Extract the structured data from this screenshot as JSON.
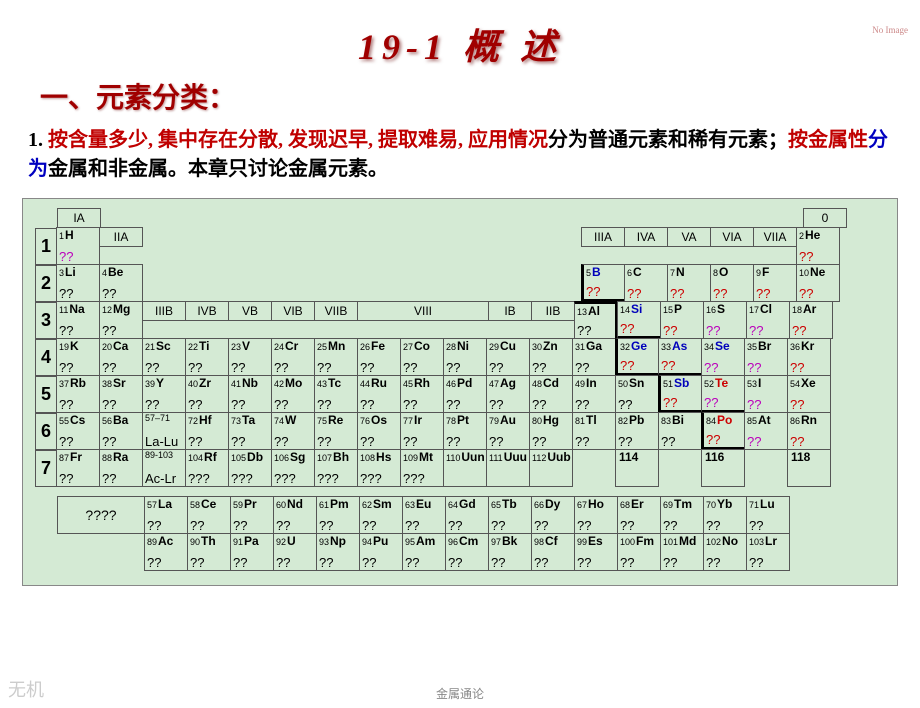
{
  "noimg": "No\nImage",
  "title": "19-1  概  述",
  "subtitle": "一、元素分类：",
  "para": {
    "p1": "1. ",
    "red1": "按含量多少, 集中存在分散, 发现迟早, 提取难易, 应用情况",
    "p2": "分为普通元素和稀有元素；",
    "red2": "按金属性",
    "blue1": "分为",
    "p3": "金属和非金属。本章只讨论金属元素。"
  },
  "headers": {
    "IA": "IA",
    "IIA": "IIA",
    "IIIB": "IIIB",
    "IVB": "IVB",
    "VB": "VB",
    "VIB": "VIB",
    "VIIB": "VIIB",
    "VIII": "VIII",
    "IB": "IB",
    "IIB": "IIB",
    "IIIA": "IIIA",
    "IVA": "IVA",
    "VA": "VA",
    "VIA": "VIA",
    "VIIA": "VIIA",
    "g0": "0"
  },
  "periods": [
    "1",
    "2",
    "3",
    "4",
    "5",
    "6",
    "7"
  ],
  "e": {
    "H": {
      "z": "1",
      "s": "H",
      "q": "??",
      "qc": "qmag"
    },
    "He": {
      "z": "2",
      "s": "He",
      "q": "??",
      "qc": "qred"
    },
    "Li": {
      "z": "3",
      "s": "Li",
      "q": "??"
    },
    "Be": {
      "z": "4",
      "s": "Be",
      "q": "??"
    },
    "B": {
      "z": "5",
      "s": "B",
      "q": "??",
      "sc": "sblue",
      "qc": "qred"
    },
    "C": {
      "z": "6",
      "s": "C",
      "q": "??",
      "qc": "qred"
    },
    "N": {
      "z": "7",
      "s": "N",
      "q": "??",
      "qc": "qred"
    },
    "O": {
      "z": "8",
      "s": "O",
      "q": "??",
      "qc": "qred"
    },
    "F": {
      "z": "9",
      "s": "F",
      "q": "??",
      "qc": "qred"
    },
    "Ne": {
      "z": "10",
      "s": "Ne",
      "q": "??",
      "qc": "qred"
    },
    "Na": {
      "z": "11",
      "s": "Na",
      "q": "??"
    },
    "Mg": {
      "z": "12",
      "s": "Mg",
      "q": "??"
    },
    "Al": {
      "z": "13",
      "s": "Al",
      "q": "??"
    },
    "Si": {
      "z": "14",
      "s": "Si",
      "q": "??",
      "sc": "sblue",
      "qc": "qred"
    },
    "P": {
      "z": "15",
      "s": "P",
      "q": "??",
      "qc": "qred"
    },
    "S": {
      "z": "16",
      "s": "S",
      "q": "??",
      "qc": "qmag"
    },
    "Cl": {
      "z": "17",
      "s": "Cl",
      "q": "??",
      "qc": "qmag"
    },
    "Ar": {
      "z": "18",
      "s": "Ar",
      "q": "??",
      "qc": "qred"
    },
    "K": {
      "z": "19",
      "s": "K",
      "q": "??"
    },
    "Ca": {
      "z": "20",
      "s": "Ca",
      "q": "??"
    },
    "Sc": {
      "z": "21",
      "s": "Sc",
      "q": "??"
    },
    "Ti": {
      "z": "22",
      "s": "Ti",
      "q": "??"
    },
    "V": {
      "z": "23",
      "s": "V",
      "q": "??"
    },
    "Cr": {
      "z": "24",
      "s": "Cr",
      "q": "??"
    },
    "Mn": {
      "z": "25",
      "s": "Mn",
      "q": "??"
    },
    "Fe": {
      "z": "26",
      "s": "Fe",
      "q": "??"
    },
    "Co": {
      "z": "27",
      "s": "Co",
      "q": "??"
    },
    "Ni": {
      "z": "28",
      "s": "Ni",
      "q": "??"
    },
    "Cu": {
      "z": "29",
      "s": "Cu",
      "q": "??"
    },
    "Zn": {
      "z": "30",
      "s": "Zn",
      "q": "??"
    },
    "Ga": {
      "z": "31",
      "s": "Ga",
      "q": "??"
    },
    "Ge": {
      "z": "32",
      "s": "Ge",
      "q": "??",
      "sc": "sblue",
      "qc": "qred"
    },
    "As": {
      "z": "33",
      "s": "As",
      "q": "??",
      "sc": "sblue",
      "qc": "qred"
    },
    "Se": {
      "z": "34",
      "s": "Se",
      "q": "??",
      "sc": "sblue",
      "qc": "qmag"
    },
    "Br": {
      "z": "35",
      "s": "Br",
      "q": "??",
      "qc": "qmag"
    },
    "Kr": {
      "z": "36",
      "s": "Kr",
      "q": "??",
      "qc": "qred"
    },
    "Rb": {
      "z": "37",
      "s": "Rb",
      "q": "??"
    },
    "Sr": {
      "z": "38",
      "s": "Sr",
      "q": "??"
    },
    "Y": {
      "z": "39",
      "s": "Y",
      "q": "??"
    },
    "Zr": {
      "z": "40",
      "s": "Zr",
      "q": "??"
    },
    "Nb": {
      "z": "41",
      "s": "Nb",
      "q": "??"
    },
    "Mo": {
      "z": "42",
      "s": "Mo",
      "q": "??"
    },
    "Tc": {
      "z": "43",
      "s": "Tc",
      "q": "??"
    },
    "Ru": {
      "z": "44",
      "s": "Ru",
      "q": "??"
    },
    "Rh": {
      "z": "45",
      "s": "Rh",
      "q": "??"
    },
    "Pd": {
      "z": "46",
      "s": "Pd",
      "q": "??"
    },
    "Ag": {
      "z": "47",
      "s": "Ag",
      "q": "??"
    },
    "Cd": {
      "z": "48",
      "s": "Cd",
      "q": "??"
    },
    "In": {
      "z": "49",
      "s": "In",
      "q": "??"
    },
    "Sn": {
      "z": "50",
      "s": "Sn",
      "q": "??"
    },
    "Sb": {
      "z": "51",
      "s": "Sb",
      "q": "??",
      "sc": "sblue",
      "qc": "qred"
    },
    "Te": {
      "z": "52",
      "s": "Te",
      "q": "??",
      "sc": "sred",
      "qc": "qmag"
    },
    "I": {
      "z": "53",
      "s": "I",
      "q": "??",
      "qc": "qmag"
    },
    "Xe": {
      "z": "54",
      "s": "Xe",
      "q": "??",
      "qc": "qred"
    },
    "Cs": {
      "z": "55",
      "s": "Cs",
      "q": "??"
    },
    "Ba": {
      "z": "56",
      "s": "Ba",
      "q": "??"
    },
    "LaLu": {
      "z": "57–71",
      "s": "",
      "q": "La-Lu"
    },
    "Hf": {
      "z": "72",
      "s": "Hf",
      "q": "??"
    },
    "Ta": {
      "z": "73",
      "s": "Ta",
      "q": "??"
    },
    "W": {
      "z": "74",
      "s": "W",
      "q": "??"
    },
    "Re": {
      "z": "75",
      "s": "Re",
      "q": "??"
    },
    "Os": {
      "z": "76",
      "s": "Os",
      "q": "??"
    },
    "Ir": {
      "z": "77",
      "s": "Ir",
      "q": "??"
    },
    "Pt": {
      "z": "78",
      "s": "Pt",
      "q": "??"
    },
    "Au": {
      "z": "79",
      "s": "Au",
      "q": "??"
    },
    "Hg": {
      "z": "80",
      "s": "Hg",
      "q": "??"
    },
    "Tl": {
      "z": "81",
      "s": "Tl",
      "q": "??"
    },
    "Pb": {
      "z": "82",
      "s": "Pb",
      "q": "??"
    },
    "Bi": {
      "z": "83",
      "s": "Bi",
      "q": "??"
    },
    "Po": {
      "z": "84",
      "s": "Po",
      "q": "??",
      "sc": "sred",
      "qc": "qred"
    },
    "At": {
      "z": "85",
      "s": "At",
      "q": "??",
      "qc": "qmag"
    },
    "Rn": {
      "z": "86",
      "s": "Rn",
      "q": "??",
      "qc": "qred"
    },
    "Fr": {
      "z": "87",
      "s": "Fr",
      "q": "??"
    },
    "Ra": {
      "z": "88",
      "s": "Ra",
      "q": "??"
    },
    "AcLr": {
      "z": "89-103",
      "s": "",
      "q": "Ac-Lr"
    },
    "Rf": {
      "z": "104",
      "s": "Rf",
      "q": "???"
    },
    "Db": {
      "z": "105",
      "s": "Db",
      "q": "???"
    },
    "Sg": {
      "z": "106",
      "s": "Sg",
      "q": "???"
    },
    "Bh": {
      "z": "107",
      "s": "Bh",
      "q": "???"
    },
    "Hs": {
      "z": "108",
      "s": "Hs",
      "q": "???"
    },
    "Mt": {
      "z": "109",
      "s": "Mt",
      "q": "???"
    },
    "Uun": {
      "z": "110",
      "s": "Uun",
      "q": ""
    },
    "Uuu": {
      "z": "111",
      "s": "Uuu",
      "q": ""
    },
    "Uub": {
      "z": "112",
      "s": "Uub",
      "q": ""
    },
    "e114": {
      "z": "",
      "s": "114",
      "q": ""
    },
    "e116": {
      "z": "",
      "s": "116",
      "q": ""
    },
    "e118": {
      "z": "",
      "s": "118",
      "q": ""
    }
  },
  "lan": {
    "lbl": "????",
    "r1": [
      {
        "z": "57",
        "s": "La",
        "q": "??"
      },
      {
        "z": "58",
        "s": "Ce",
        "q": "??"
      },
      {
        "z": "59",
        "s": "Pr",
        "q": "??"
      },
      {
        "z": "60",
        "s": "Nd",
        "q": "??"
      },
      {
        "z": "61",
        "s": "Pm",
        "q": "??"
      },
      {
        "z": "62",
        "s": "Sm",
        "q": "??"
      },
      {
        "z": "63",
        "s": "Eu",
        "q": "??"
      },
      {
        "z": "64",
        "s": "Gd",
        "q": "??"
      },
      {
        "z": "65",
        "s": "Tb",
        "q": "??"
      },
      {
        "z": "66",
        "s": "Dy",
        "q": "??"
      },
      {
        "z": "67",
        "s": "Ho",
        "q": "??"
      },
      {
        "z": "68",
        "s": "Er",
        "q": "??"
      },
      {
        "z": "69",
        "s": "Tm",
        "q": "??"
      },
      {
        "z": "70",
        "s": "Yb",
        "q": "??"
      },
      {
        "z": "71",
        "s": "Lu",
        "q": "??"
      }
    ],
    "r2": [
      {
        "z": "89",
        "s": "Ac",
        "q": "??"
      },
      {
        "z": "90",
        "s": "Th",
        "q": "??"
      },
      {
        "z": "91",
        "s": "Pa",
        "q": "??"
      },
      {
        "z": "92",
        "s": "U",
        "q": "??"
      },
      {
        "z": "93",
        "s": "Np",
        "q": "??"
      },
      {
        "z": "94",
        "s": "Pu",
        "q": "??"
      },
      {
        "z": "95",
        "s": "Am",
        "q": "??"
      },
      {
        "z": "96",
        "s": "Cm",
        "q": "??"
      },
      {
        "z": "97",
        "s": "Bk",
        "q": "??"
      },
      {
        "z": "98",
        "s": "Cf",
        "q": "??"
      },
      {
        "z": "99",
        "s": "Es",
        "q": "??"
      },
      {
        "z": "100",
        "s": "Fm",
        "q": "??"
      },
      {
        "z": "101",
        "s": "Md",
        "q": "??"
      },
      {
        "z": "102",
        "s": "No",
        "q": "??"
      },
      {
        "z": "103",
        "s": "Lr",
        "q": "??"
      }
    ]
  },
  "footer": "金属通论",
  "wm": "无机"
}
